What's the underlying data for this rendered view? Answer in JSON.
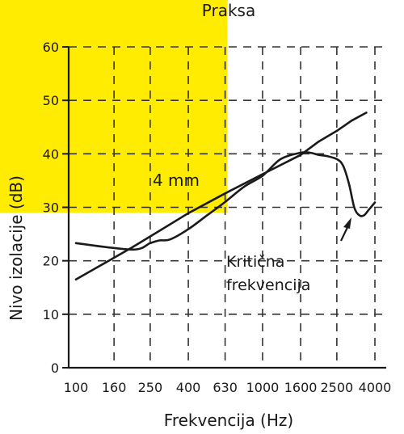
{
  "chart_data": {
    "type": "line",
    "title": "Praksa",
    "xlabel": "Frekvencija (Hz)",
    "ylabel": "Nivo izolacije (dB)",
    "x_scale": "log",
    "ylim": [
      0,
      60
    ],
    "xlim": [
      100,
      4000
    ],
    "x_ticks": [
      100,
      160,
      250,
      400,
      630,
      1000,
      1600,
      2500,
      4000
    ],
    "x_tick_labels": [
      "100",
      "160",
      "250",
      "400",
      "630",
      "1000",
      "1600",
      "2500",
      "4000"
    ],
    "y_ticks": [
      0,
      10,
      20,
      30,
      40,
      50,
      60
    ],
    "y_tick_labels": [
      "0",
      "10",
      "20",
      "30",
      "40",
      "50",
      "60"
    ],
    "grid": true,
    "highlight_region": {
      "x": [
        100,
        630
      ],
      "y": [
        29,
        60
      ],
      "color": "#FFEC00"
    },
    "annotations": {
      "region_label": "4 mm",
      "critical_label_line1": "Kritična",
      "critical_label_line2": "frekvencija"
    },
    "series": [
      {
        "x": [
          100,
          200,
          280,
          400,
          630,
          1000,
          1600,
          2000,
          2500,
          3000,
          3600
        ],
        "y": [
          16.5,
          22.5,
          25.6,
          28.9,
          32.6,
          36.2,
          39.8,
          42.3,
          44.3,
          46.2,
          47.7
        ]
      },
      {
        "x": [
          100,
          200,
          250,
          280,
          320,
          400,
          500,
          630,
          800,
          1000,
          1250,
          1600,
          1800,
          2000,
          2200,
          2500,
          2700,
          2900,
          3100,
          3300,
          3500,
          3700,
          4000
        ],
        "y": [
          23.3,
          22.1,
          23.3,
          23.8,
          24.0,
          25.9,
          28.4,
          31.0,
          33.9,
          35.9,
          39.0,
          40.2,
          40.2,
          39.8,
          39.6,
          39.0,
          37.8,
          34.5,
          30.0,
          28.5,
          28.5,
          29.5,
          30.9
        ]
      }
    ]
  }
}
